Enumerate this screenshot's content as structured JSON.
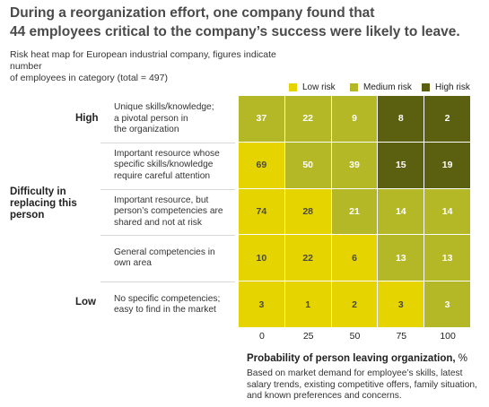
{
  "title": {
    "line1": "During a reorganization effort, one company found that",
    "line2": "44 employees critical to the company’s success were likely to leave."
  },
  "subtitle": {
    "line1": "Risk heat map for European industrial company, figures indicate number",
    "line2": "of employees in category (total = 497)"
  },
  "colors": {
    "low": "#e6d400",
    "medium": "#b5b826",
    "high": "#5b6010",
    "low_text": "#4a4a3a",
    "medium_text": "#ffffff",
    "high_text": "#ffffff",
    "gap": "#ffffff"
  },
  "chart_data": {
    "type": "heatmap",
    "title": "Risk heat map for European industrial company, figures indicate number of employees in category (total = 497)",
    "xlabel": "Probability of person leaving organization,",
    "xlabel_unit": "%",
    "xlabel_note": "Based on market demand for employee’s skills, latest salary trends, existing competitive offers, family situation, and known preferences and concerns.",
    "ylabel": "Difficulty in replacing this person",
    "ylabel_lines": [
      "Difficulty in",
      "replacing this",
      "person"
    ],
    "y_high_label": "High",
    "y_low_label": "Low",
    "x": [
      "0",
      "25",
      "50",
      "75",
      "100"
    ],
    "y": [
      "Unique skills/knowledge; a pivotal person in the organization",
      "Important resource whose specific skills/knowledge require careful attention",
      "Important resource, but person’s competencies are shared and not at risk",
      "General competencies in own area",
      "No specific competencies; easy to find in the market"
    ],
    "y_lines": [
      [
        "Unique skills/knowledge;",
        "a pivotal person in",
        "the organization"
      ],
      [
        "Important resource whose",
        "specific skills/knowledge",
        "require careful attention"
      ],
      [
        "Important resource, but",
        "person’s competencies are",
        "shared and not at risk"
      ],
      [
        "General competencies in",
        "own area"
      ],
      [
        "No specific competencies;",
        "easy to find in the market"
      ]
    ],
    "values": [
      [
        37,
        22,
        9,
        8,
        2
      ],
      [
        69,
        50,
        39,
        15,
        19
      ],
      [
        74,
        28,
        21,
        14,
        14
      ],
      [
        10,
        22,
        6,
        13,
        13
      ],
      [
        3,
        1,
        2,
        3,
        3
      ]
    ],
    "risk": [
      [
        "medium",
        "medium",
        "medium",
        "high",
        "high"
      ],
      [
        "low",
        "medium",
        "medium",
        "high",
        "high"
      ],
      [
        "low",
        "low",
        "medium",
        "medium",
        "medium"
      ],
      [
        "low",
        "low",
        "low",
        "medium",
        "medium"
      ],
      [
        "low",
        "low",
        "low",
        "low",
        "medium"
      ]
    ],
    "legend": [
      {
        "key": "low",
        "label": "Low risk"
      },
      {
        "key": "medium",
        "label": "Medium risk"
      },
      {
        "key": "high",
        "label": "High risk"
      }
    ]
  }
}
